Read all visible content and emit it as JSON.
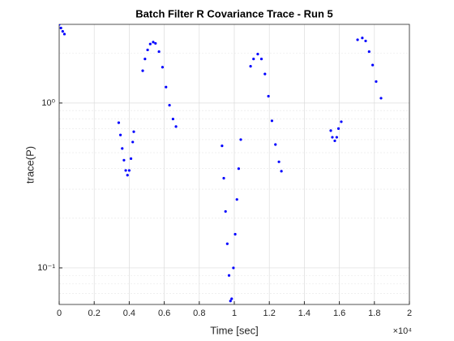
{
  "chart_data": {
    "type": "scatter",
    "title": "Batch Filter R Covariance Trace - Run 5",
    "x_label": "Time [sec]",
    "y_label": "trace(P)",
    "x_exponent_label": "×10⁴",
    "xlim": [
      0,
      20000
    ],
    "xticks": [
      0,
      {
        "value": 2000,
        "label": "0.2"
      },
      {
        "value": 4000,
        "label": "0.4"
      },
      {
        "value": 6000,
        "label": "0.6"
      },
      {
        "value": 8000,
        "label": "0.8"
      },
      {
        "value": 10000,
        "label": "1"
      },
      {
        "value": 12000,
        "label": "1.2"
      },
      {
        "value": 14000,
        "label": "1.4"
      },
      {
        "value": 16000,
        "label": "1.6"
      },
      {
        "value": 18000,
        "label": "1.8"
      },
      {
        "value": 20000,
        "label": "2"
      }
    ],
    "ylim": [
      0.06,
      3.0
    ],
    "yticks": [
      {
        "value": 0.1,
        "label": "10⁻¹"
      },
      {
        "value": 1,
        "label": "10⁰"
      }
    ],
    "y_scale": "log",
    "grid": true,
    "minor_grid": true,
    "series": [
      {
        "color": "#0000ff",
        "x": [
          0,
          100,
          200,
          300,
          null,
          3400,
          3500,
          3600,
          3700,
          3800,
          3900,
          4000,
          4100,
          4200,
          4260,
          null,
          4770,
          4900,
          5050,
          5200,
          5370,
          5500,
          5700,
          5900,
          6100,
          6300,
          6500,
          6670,
          null,
          9300,
          9400,
          9500,
          9600,
          9700,
          9780,
          9850,
          9950,
          10050,
          10150,
          10250,
          10370,
          null,
          10930,
          11100,
          11340,
          11550,
          11750,
          11950,
          12150,
          12350,
          12550,
          12690,
          null,
          15510,
          15600,
          15740,
          15850,
          15950,
          16110,
          null,
          17040,
          17310,
          17500,
          17700,
          17900,
          18100,
          18380
        ],
        "values": [
          3.0,
          2.85,
          2.72,
          2.62,
          null,
          0.76,
          0.64,
          0.53,
          0.45,
          0.39,
          0.365,
          0.39,
          0.46,
          0.58,
          0.67,
          null,
          1.57,
          1.85,
          2.1,
          2.28,
          2.34,
          2.3,
          2.05,
          1.65,
          1.25,
          0.97,
          0.8,
          0.72,
          null,
          0.55,
          0.35,
          0.22,
          0.14,
          0.09,
          0.063,
          0.065,
          0.1,
          0.16,
          0.26,
          0.4,
          0.6,
          null,
          1.67,
          1.85,
          1.98,
          1.85,
          1.5,
          1.1,
          0.78,
          0.56,
          0.44,
          0.386,
          null,
          0.68,
          0.62,
          0.59,
          0.62,
          0.7,
          0.77,
          null,
          2.42,
          2.48,
          2.38,
          2.05,
          1.7,
          1.35,
          1.07
        ]
      }
    ]
  }
}
